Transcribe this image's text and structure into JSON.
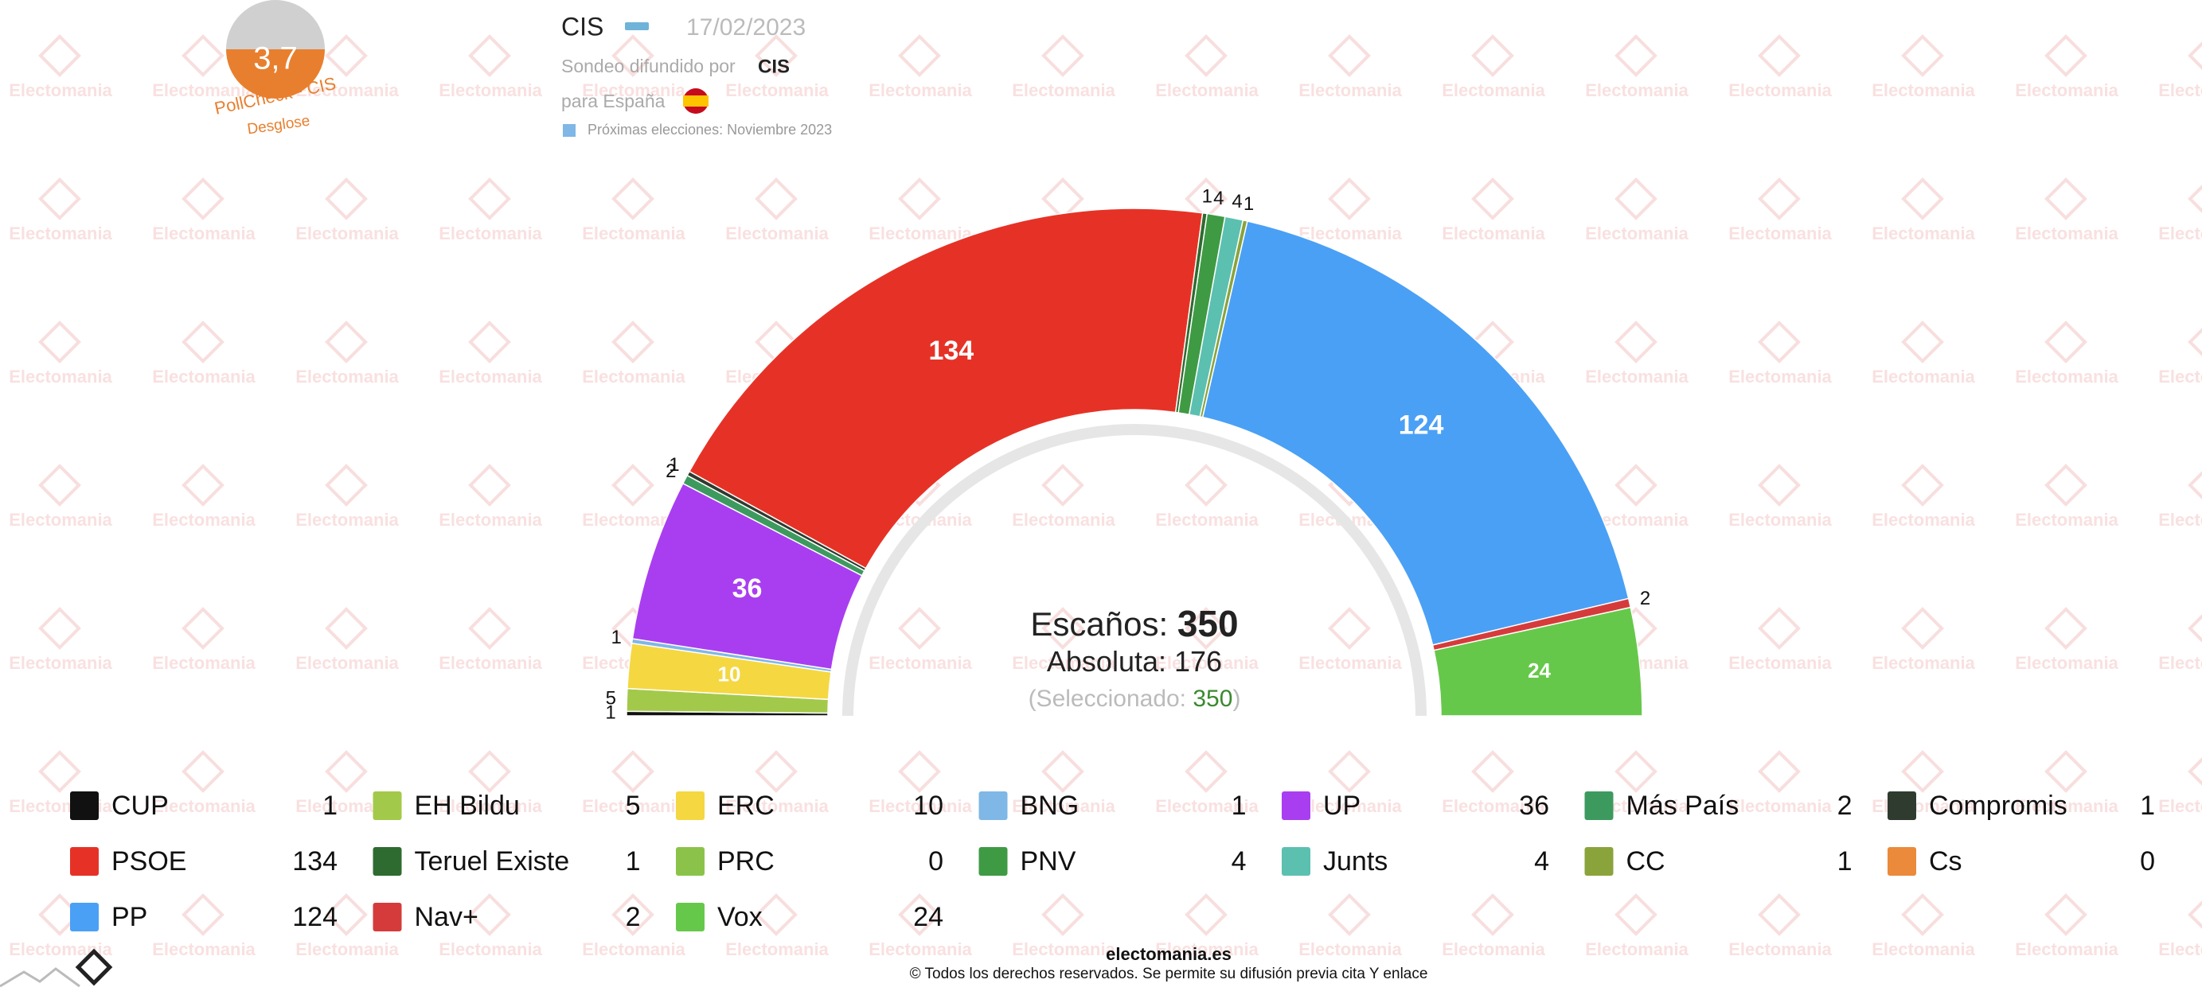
{
  "header": {
    "pollster": "CIS",
    "date": "17/02/2023",
    "spread_by": "Sondeo difundido por",
    "spread_by_name": "CIS",
    "region": "para España",
    "next_elections": "Próximas elecciones: Noviembre 2023",
    "score": "3,7",
    "score_label": "PollCheck - CIS",
    "breakdown": "Desglose"
  },
  "watermark": "Electomania",
  "chart_data": {
    "type": "hemicycle",
    "categories": [
      "CUP",
      "EH Bildu",
      "ERC",
      "BNG",
      "UP",
      "Más País",
      "Compromis",
      "PSOE",
      "Teruel Existe",
      "PRC",
      "PNV",
      "Junts",
      "CC",
      "Cs",
      "PP",
      "Nav+",
      "Vox"
    ],
    "values": [
      1,
      5,
      10,
      1,
      36,
      2,
      1,
      134,
      1,
      0,
      4,
      4,
      1,
      0,
      124,
      2,
      24
    ],
    "colors": [
      "#111111",
      "#a3c94a",
      "#f5d742",
      "#7fb7e6",
      "#a93ef0",
      "#3d9a5e",
      "#2f3b2f",
      "#e63226",
      "#2e6b30",
      "#8bc34a",
      "#3f9a44",
      "#5bc0b0",
      "#8aa33b",
      "#eb8a3a",
      "#4aa0f5",
      "#d63b3b",
      "#66c84a"
    ],
    "seats_label": "Escaños:",
    "total": 350,
    "majority_label": "Absoluta:",
    "majority": 176,
    "selected_label": "(Seleccionado:",
    "selected": 350,
    "selected_close": ")"
  },
  "footer": {
    "site": "electomania.es",
    "copyright": "© Todos los derechos reservados. Se permite su difusión previa cita Y enlace"
  }
}
